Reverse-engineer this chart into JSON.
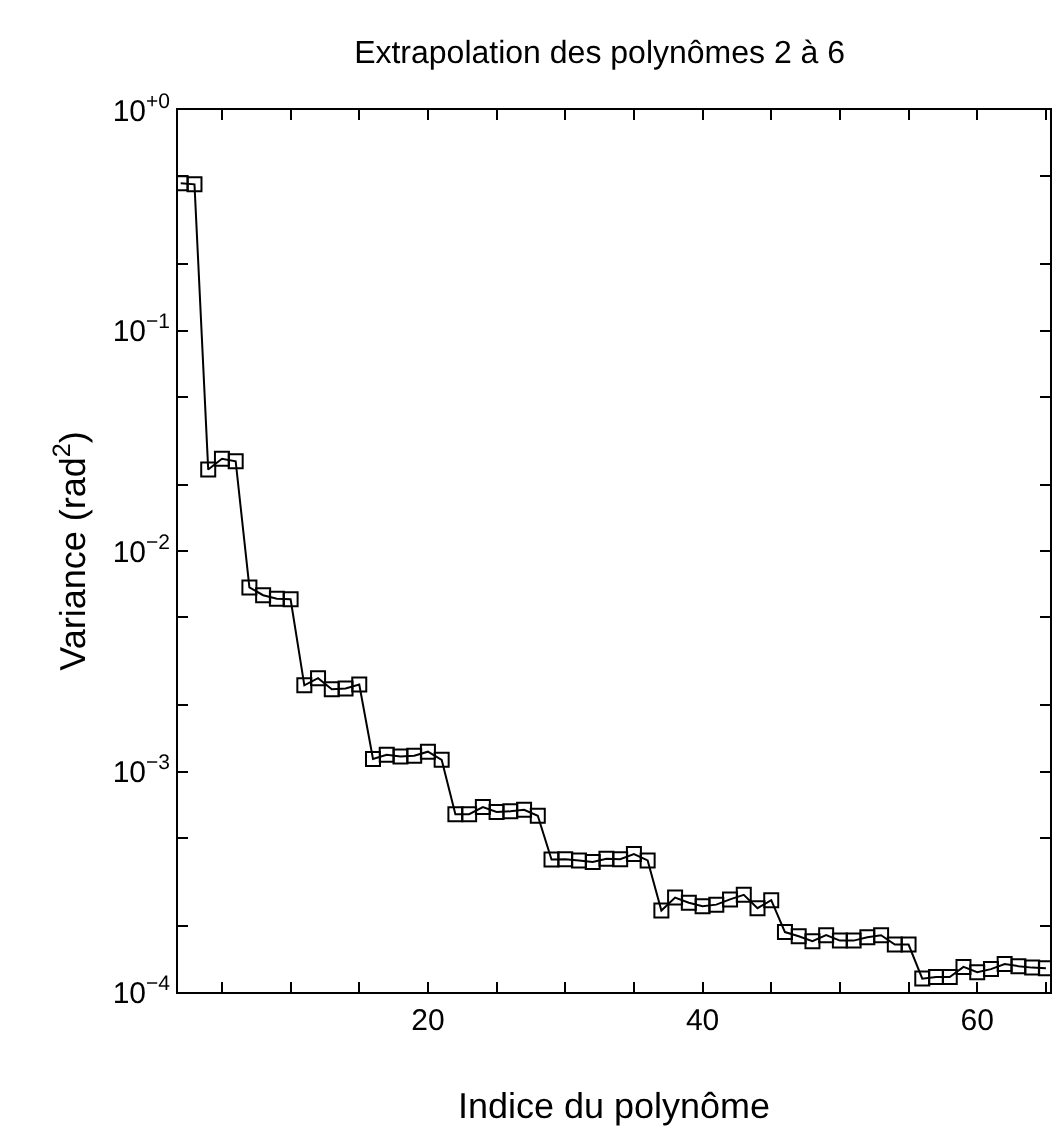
{
  "chart_data": {
    "type": "line",
    "title": "Extrapolation des polynômes 2 à 6",
    "xlabel": "Indice du polynôme",
    "ylabel": "Variance (rad$^{2}$)",
    "x": [
      2,
      3,
      4,
      5,
      6,
      7,
      8,
      9,
      10,
      11,
      12,
      13,
      14,
      15,
      16,
      17,
      18,
      19,
      20,
      21,
      22,
      23,
      24,
      25,
      26,
      27,
      28,
      29,
      30,
      31,
      32,
      33,
      34,
      35,
      36,
      37,
      38,
      39,
      40,
      41,
      42,
      43,
      44,
      45,
      46,
      47,
      48,
      49,
      50,
      51,
      52,
      53,
      54,
      55,
      56,
      57,
      58,
      59,
      60,
      61,
      62,
      63,
      64,
      65
    ],
    "series": [
      {
        "color": "#000000",
        "values": [
          0.465,
          0.46,
          0.0234,
          0.0262,
          0.0255,
          0.00684,
          0.0063,
          0.00608,
          0.00604,
          0.00246,
          0.00265,
          0.00236,
          0.00238,
          0.00248,
          0.00114,
          0.00119,
          0.00117,
          0.00118,
          0.00123,
          0.00113,
          0.00064,
          0.00064,
          0.00069,
          0.000655,
          0.00066,
          0.00067,
          0.00063,
          0.000399,
          0.0004,
          0.000395,
          0.000389,
          0.000402,
          0.0004,
          0.000422,
          0.000395,
          0.000234,
          0.000268,
          0.000254,
          0.000245,
          0.000249,
          0.000263,
          0.000276,
          0.00024,
          0.000261,
          0.000187,
          0.000179,
          0.00017,
          0.000181,
          0.000171,
          0.000171,
          0.000177,
          0.000181,
          0.000164,
          0.000164,
          0.000115,
          0.000117,
          0.000117,
          0.00013,
          0.000123,
          0.000127,
          0.000134,
          0.000131,
          0.000129,
          0.000128
        ]
      }
    ],
    "log": "y",
    "marker": "square",
    "line_style": "solid",
    "xlim": [
      1.8,
      65.3
    ],
    "xticks": [
      {
        "value": 5,
        "label": null
      },
      {
        "value": 10,
        "label": null
      },
      {
        "value": 15,
        "label": null
      },
      20,
      {
        "value": 25,
        "label": null
      },
      {
        "value": 30,
        "label": null
      },
      {
        "value": 35,
        "label": null
      },
      40,
      {
        "value": 45,
        "label": null
      },
      {
        "value": 50,
        "label": null
      },
      {
        "value": 55,
        "label": null
      },
      60,
      {
        "value": 65,
        "label": null
      }
    ],
    "ylim": [
      0.0001,
      1
    ],
    "yticks": [
      {
        "value": 1,
        "label": "10$^{+0}$"
      },
      {
        "value": 0.5,
        "label": null
      },
      {
        "value": 0.2,
        "label": null
      },
      {
        "value": 0.1,
        "label": "10$^{−1}$"
      },
      {
        "value": 0.05,
        "label": null
      },
      {
        "value": 0.02,
        "label": null
      },
      {
        "value": 0.01,
        "label": "10$^{−2}$"
      },
      {
        "value": 0.005,
        "label": null
      },
      {
        "value": 0.002,
        "label": null
      },
      {
        "value": 0.001,
        "label": "10$^{−3}$"
      },
      {
        "value": 0.0005,
        "label": null
      },
      {
        "value": 0.0002,
        "label": null
      },
      {
        "value": 0.0001,
        "label": "10$^{−4}$"
      }
    ]
  }
}
